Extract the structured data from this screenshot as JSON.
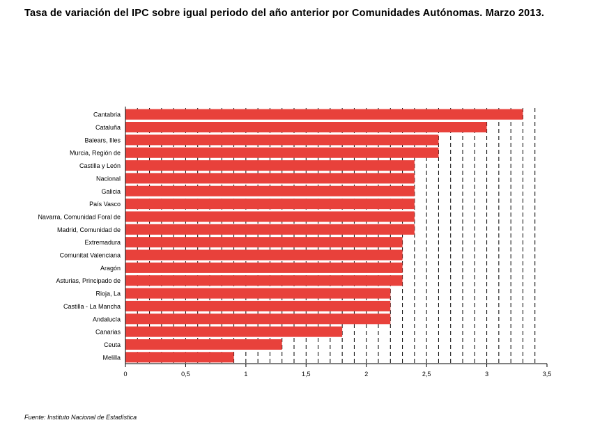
{
  "title": "Tasa de variación del IPC sobre igual periodo del año anterior por Comunidades Autónomas. Marzo 2013.",
  "source": "Fuente: Instituto Nacional de Estadística",
  "chart_data": {
    "type": "bar",
    "orientation": "horizontal",
    "categories": [
      "Cantabria",
      "Cataluña",
      "Balears, Illes",
      "Murcia, Región de",
      "Castilla y León",
      "Nacional",
      "Galicia",
      "País Vasco",
      "Navarra, Comunidad Foral de",
      "Madrid, Comunidad de",
      "Extremadura",
      "Comunitat Valenciana",
      "Aragón",
      "Asturias, Principado de",
      "Rioja, La",
      "Castilla - La Mancha",
      "Andalucía",
      "Canarias",
      "Ceuta",
      "Melilla"
    ],
    "values": [
      3.3,
      3.0,
      2.6,
      2.6,
      2.4,
      2.4,
      2.4,
      2.4,
      2.4,
      2.4,
      2.3,
      2.3,
      2.3,
      2.3,
      2.2,
      2.2,
      2.2,
      1.8,
      1.3,
      0.9
    ],
    "xlim": [
      0,
      3.5
    ],
    "xticks": [
      "0",
      "0,5",
      "1",
      "1,5",
      "2",
      "2,5",
      "3",
      "3,5"
    ],
    "gridlines": "vertical dashed",
    "bar_color": "#e8413b"
  }
}
